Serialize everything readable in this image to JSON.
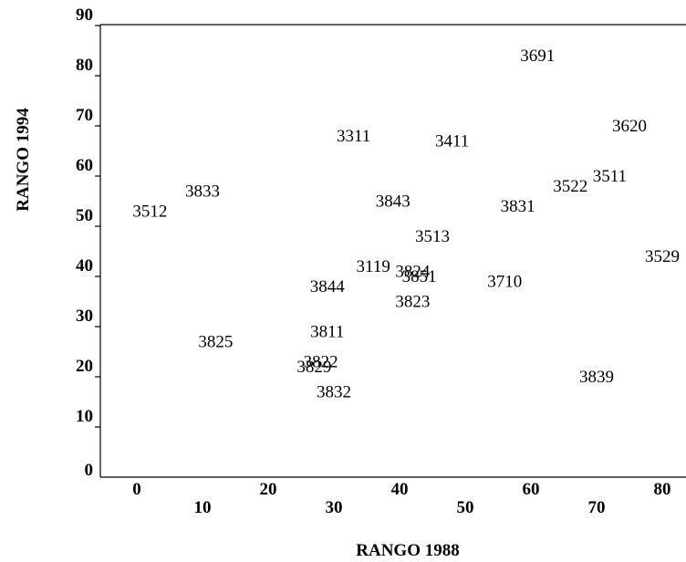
{
  "chart_data": {
    "type": "scatter",
    "title": "",
    "xlabel": "RANGO 1988",
    "ylabel": "RANGO 1994",
    "xlim": [
      -5,
      83
    ],
    "ylim": [
      0,
      90
    ],
    "x_ticks": [
      0,
      10,
      20,
      30,
      40,
      50,
      60,
      70,
      80
    ],
    "y_ticks": [
      0,
      10,
      20,
      30,
      40,
      50,
      60,
      70,
      80,
      90
    ],
    "grid": false,
    "points": [
      {
        "label": "3691",
        "x": 61,
        "y": 84
      },
      {
        "label": "3620",
        "x": 75,
        "y": 70
      },
      {
        "label": "3311",
        "x": 33,
        "y": 68
      },
      {
        "label": "3411",
        "x": 48,
        "y": 67
      },
      {
        "label": "3511",
        "x": 72,
        "y": 60
      },
      {
        "label": "3522",
        "x": 66,
        "y": 58
      },
      {
        "label": "3833",
        "x": 10,
        "y": 57
      },
      {
        "label": "3843",
        "x": 39,
        "y": 55
      },
      {
        "label": "3831",
        "x": 58,
        "y": 54
      },
      {
        "label": "3512",
        "x": 2,
        "y": 53
      },
      {
        "label": "3513",
        "x": 45,
        "y": 48
      },
      {
        "label": "3529",
        "x": 80,
        "y": 44
      },
      {
        "label": "3119",
        "x": 36,
        "y": 42
      },
      {
        "label": "3824",
        "x": 42,
        "y": 41
      },
      {
        "label": "3851",
        "x": 43,
        "y": 40
      },
      {
        "label": "3710",
        "x": 56,
        "y": 39
      },
      {
        "label": "3844",
        "x": 29,
        "y": 38
      },
      {
        "label": "3823",
        "x": 42,
        "y": 35
      },
      {
        "label": "3811",
        "x": 29,
        "y": 29
      },
      {
        "label": "3825",
        "x": 12,
        "y": 27
      },
      {
        "label": "3822",
        "x": 28,
        "y": 23
      },
      {
        "label": "3829",
        "x": 27,
        "y": 22
      },
      {
        "label": "3839",
        "x": 70,
        "y": 20
      },
      {
        "label": "3832",
        "x": 30,
        "y": 17
      }
    ]
  }
}
